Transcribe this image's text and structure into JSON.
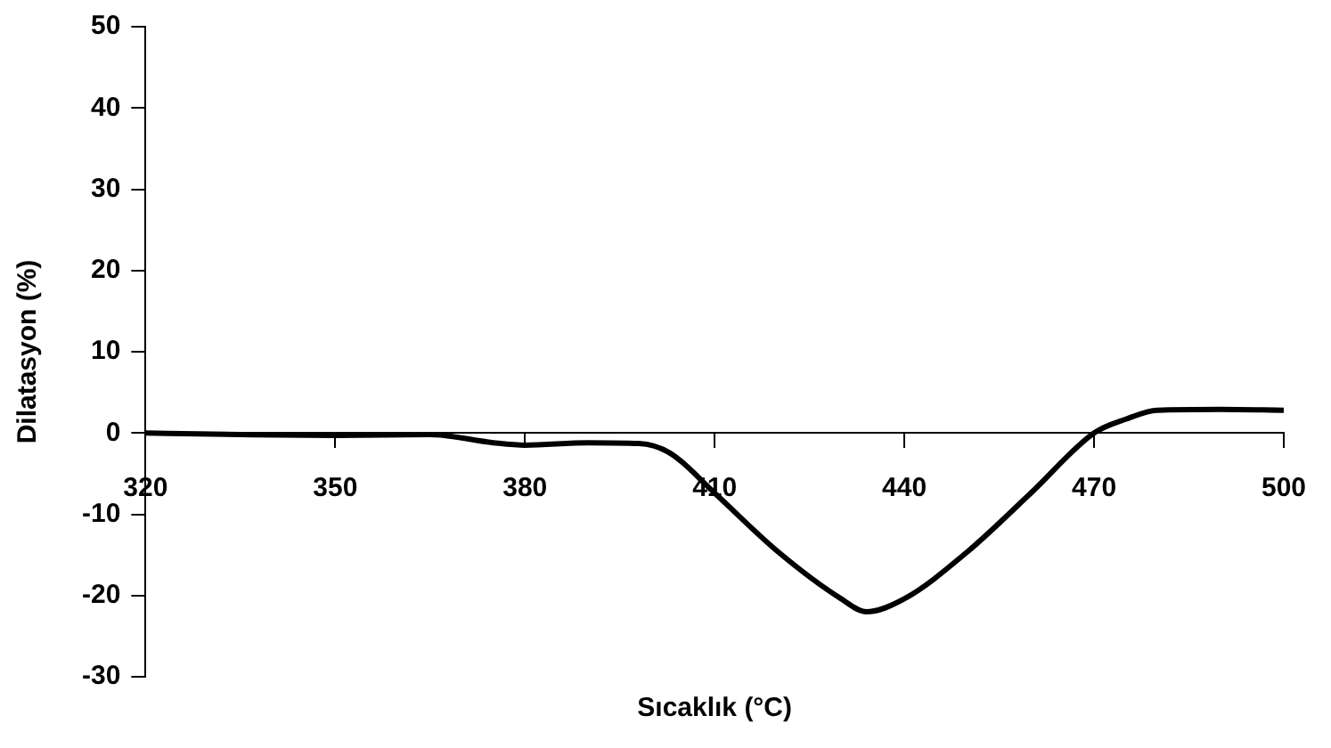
{
  "chart_data": {
    "type": "line",
    "xlabel": "Sıcaklık (°C)",
    "ylabel": "Dilatasyon (%)",
    "x": [
      320,
      335,
      350,
      365,
      375,
      380,
      390,
      398,
      403,
      410,
      420,
      430,
      434,
      440,
      450,
      460,
      470,
      475,
      480,
      490,
      500
    ],
    "series": [
      {
        "color": "#000000",
        "values": [
          0,
          -0.2,
          -0.3,
          -0.2,
          -1.2,
          -1.5,
          -1.2,
          -1.3,
          -2.5,
          -7.4,
          -14.6,
          -20.4,
          -22,
          -20.4,
          -14.6,
          -7.4,
          0,
          1.7,
          2.8,
          2.9,
          2.8
        ]
      }
    ],
    "xlim": [
      320,
      500
    ],
    "xticks": [
      320,
      350,
      380,
      410,
      440,
      470,
      500
    ],
    "ylim": [
      -30,
      50
    ],
    "yticks": [
      -30,
      -20,
      -10,
      0,
      10,
      20,
      30,
      40,
      50
    ],
    "grid": false,
    "legend": false,
    "marker": "none",
    "line_style": "solid"
  }
}
